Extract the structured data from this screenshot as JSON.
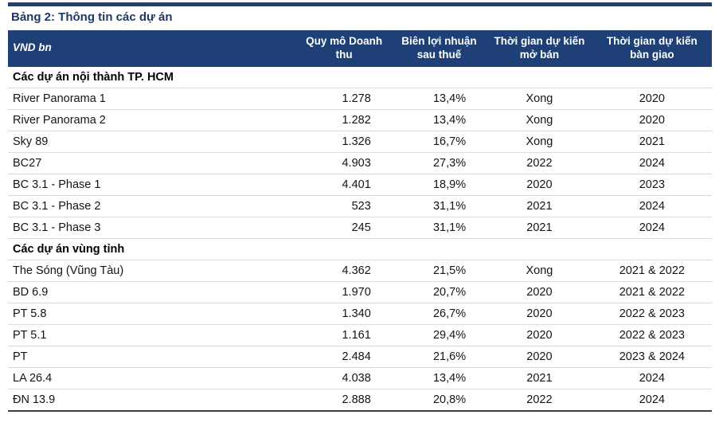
{
  "colors": {
    "accent_navy": "#1f4077",
    "title_text": "#1f3864",
    "row_divider": "#d9d9d9",
    "bottom_rule": "#3c3c3c"
  },
  "table": {
    "title": "Bảng 2: Thông tin các dự án",
    "columns": [
      {
        "label": "VND bn"
      },
      {
        "label": "Quy mô Doanh thu"
      },
      {
        "label": "Biên lợi nhuận sau thuế"
      },
      {
        "label": "Thời gian dự kiến mở bán"
      },
      {
        "label": "Thời gian dự kiến bàn giao"
      }
    ],
    "sections": [
      {
        "heading": "Các dự án nội thành TP. HCM",
        "rows": [
          [
            "River Panorama 1",
            "1.278",
            "13,4%",
            "Xong",
            "2020"
          ],
          [
            "River Panorama 2",
            "1.282",
            "13,4%",
            "Xong",
            "2020"
          ],
          [
            "Sky 89",
            "1.326",
            "16,7%",
            "Xong",
            "2021"
          ],
          [
            "BC27",
            "4.903",
            "27,3%",
            "2022",
            "2024"
          ],
          [
            "BC 3.1 - Phase 1",
            "4.401",
            "18,9%",
            "2020",
            "2023"
          ],
          [
            "BC 3.1 - Phase 2",
            "523",
            "31,1%",
            "2021",
            "2024"
          ],
          [
            "BC 3.1 - Phase 3",
            "245",
            "31,1%",
            "2021",
            "2024"
          ]
        ]
      },
      {
        "heading": "Các dự án vùng tỉnh",
        "rows": [
          [
            "The Sóng (Vũng Tàu)",
            "4.362",
            "21,5%",
            "Xong",
            "2021 & 2022"
          ],
          [
            "BD 6.9",
            "1.970",
            "20,7%",
            "2020",
            "2021 & 2022"
          ],
          [
            "PT 5.8",
            "1.340",
            "26,7%",
            "2020",
            "2022 & 2023"
          ],
          [
            "PT 5.1",
            "1.161",
            "29,4%",
            "2020",
            "2022 & 2023"
          ],
          [
            "PT",
            "2.484",
            "21,6%",
            "2020",
            "2023 & 2024"
          ],
          [
            "LA 26.4",
            "4.038",
            "13,4%",
            "2021",
            "2024"
          ],
          [
            "ĐN 13.9",
            "2.888",
            "20,8%",
            "2022",
            "2024"
          ]
        ]
      }
    ]
  }
}
